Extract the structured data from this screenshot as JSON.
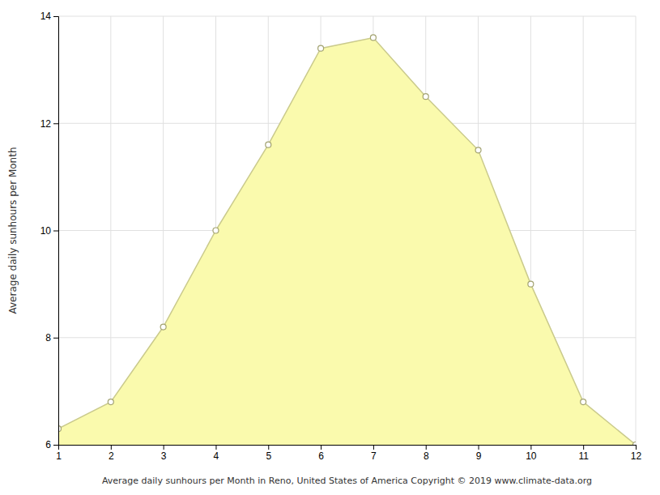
{
  "chart_data": {
    "type": "area",
    "x": [
      1,
      2,
      3,
      4,
      5,
      6,
      7,
      8,
      9,
      10,
      11,
      12
    ],
    "values": [
      6.3,
      6.8,
      8.2,
      10.0,
      11.6,
      13.4,
      13.6,
      12.5,
      11.5,
      9.0,
      6.8,
      6.0
    ],
    "x_label": "Average daily sunhours per Month in Reno, United States of America Copyright © 2019 www.climate-data.org",
    "y_label": "Average daily sunhours per Month",
    "xlim": [
      1,
      12
    ],
    "ylim": [
      6,
      14
    ],
    "xticks": [
      1,
      2,
      3,
      4,
      5,
      6,
      7,
      8,
      9,
      10,
      11,
      12
    ],
    "yticks": [
      6,
      8,
      10,
      12,
      14
    ],
    "color": "#FAFAAD",
    "marker": "circle",
    "grid": true
  }
}
